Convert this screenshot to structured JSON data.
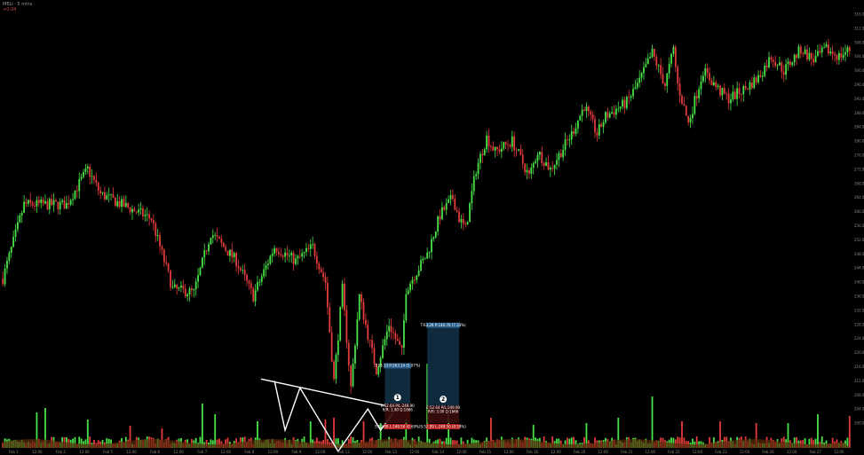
{
  "header": {
    "symbol": "MELI",
    "timeframe": "5 mins",
    "sub": "+0.04"
  },
  "colors": {
    "up": "#49e349",
    "down": "#e23b3b",
    "pattern": "#ffffff",
    "target_box": "#123048",
    "target_label": "#2a5f8c",
    "stop_box": "#3a0b0b",
    "stop_label": "#b21e1e",
    "volume_ma": "#5a2a0a"
  },
  "chart_data": {
    "type": "candlestick",
    "title": "",
    "price_anchors": [
      [
        0,
        241
      ],
      [
        10,
        262
      ],
      [
        30,
        262
      ],
      [
        40,
        272
      ],
      [
        46,
        265
      ],
      [
        56,
        262
      ],
      [
        70,
        258
      ],
      [
        80,
        238
      ],
      [
        90,
        237
      ],
      [
        98,
        254
      ],
      [
        110,
        246
      ],
      [
        118,
        236
      ],
      [
        128,
        250
      ],
      [
        138,
        246
      ],
      [
        146,
        250
      ],
      [
        152,
        240
      ],
      [
        156,
        212
      ],
      [
        160,
        238
      ],
      [
        164,
        210
      ],
      [
        168,
        236
      ],
      [
        172,
        225
      ],
      [
        176,
        215
      ],
      [
        182,
        228
      ],
      [
        188,
        220
      ],
      [
        190,
        238
      ],
      [
        200,
        248
      ],
      [
        206,
        259
      ],
      [
        212,
        264
      ],
      [
        215,
        258
      ],
      [
        218,
        255
      ],
      [
        223,
        272
      ],
      [
        228,
        281
      ],
      [
        232,
        277
      ],
      [
        240,
        280
      ],
      [
        248,
        270
      ],
      [
        252,
        277
      ],
      [
        258,
        272
      ],
      [
        262,
        276
      ],
      [
        268,
        282
      ],
      [
        274,
        290
      ],
      [
        280,
        282
      ],
      [
        284,
        287
      ],
      [
        294,
        291
      ],
      [
        300,
        297
      ],
      [
        306,
        305
      ],
      [
        312,
        296
      ],
      [
        316,
        306
      ],
      [
        318,
        296
      ],
      [
        323,
        285
      ],
      [
        330,
        300
      ],
      [
        338,
        294
      ],
      [
        342,
        292
      ],
      [
        350,
        295
      ],
      [
        356,
        298
      ],
      [
        362,
        304
      ],
      [
        368,
        300
      ],
      [
        372,
        303
      ],
      [
        376,
        306
      ],
      [
        382,
        303
      ],
      [
        388,
        306
      ],
      [
        394,
        304
      ],
      [
        399,
        306
      ]
    ],
    "volume_spikes": [
      [
        16,
        40
      ],
      [
        20,
        45
      ],
      [
        40,
        32
      ],
      [
        60,
        25
      ],
      [
        75,
        22
      ],
      [
        94,
        50
      ],
      [
        100,
        38
      ],
      [
        120,
        30
      ],
      [
        145,
        30
      ],
      [
        152,
        32
      ],
      [
        156,
        34
      ],
      [
        170,
        30
      ],
      [
        178,
        28
      ],
      [
        190,
        32
      ],
      [
        200,
        95
      ],
      [
        210,
        38
      ],
      [
        230,
        34
      ],
      [
        250,
        26
      ],
      [
        275,
        28
      ],
      [
        290,
        34
      ],
      [
        306,
        58
      ],
      [
        320,
        30
      ],
      [
        338,
        30
      ],
      [
        355,
        28
      ],
      [
        370,
        28
      ],
      [
        384,
        38
      ],
      [
        399,
        36
      ]
    ],
    "ylim": [
      198,
      318
    ],
    "y_ticks": [
      "316.00",
      "312.00",
      "308.00",
      "304.00",
      "300.00",
      "296.00",
      "292.00",
      "288.00",
      "284.00",
      "280.00",
      "276.00",
      "272.00",
      "268.00",
      "264.00",
      "260.00",
      "256.00",
      "252.00",
      "248.00",
      "244.00",
      "240.00",
      "236.00",
      "232.00",
      "228.00",
      "224.00",
      "220.00",
      "216.00",
      "212.00",
      "208.00",
      "204.00",
      "200.00"
    ],
    "x_ticks": [
      "Feb 1",
      "12:00",
      "Feb 2",
      "12:00",
      "Feb 5",
      "12:00",
      "Feb 6",
      "12:00",
      "Feb 7",
      "12:00",
      "Feb 8",
      "12:00",
      "Feb 9",
      "12:00",
      "Feb 12",
      "12:00",
      "Feb 13",
      "12:00",
      "Feb 14",
      "12:00",
      "Feb 15",
      "12:00",
      "Feb 16",
      "12:00",
      "Feb 20",
      "12:00",
      "Feb 21",
      "12:00",
      "Feb 22",
      "12:00",
      "Feb 23",
      "12:00",
      "Feb 26",
      "12:00",
      "Feb 27",
      "12:00"
    ],
    "trend_line": {
      "from": [
        125,
        212.5
      ],
      "to": [
        180,
        205
      ]
    },
    "pattern": [
      [
        128,
        212
      ],
      [
        133,
        198
      ],
      [
        140,
        210
      ],
      [
        158,
        192
      ],
      [
        172,
        204
      ],
      [
        178,
        198
      ],
      [
        184,
        203
      ]
    ],
    "trades": [
      {
        "number": "1",
        "x0": 180,
        "x1": 192,
        "entry": 205.5,
        "target": 215.5,
        "stop": 200,
        "target_label": "T:53.13 P:263.14 (5.07%)",
        "mid_label_1": "E:52.64 P/L:249.90",
        "mid_label_2": "R/R: 1.90 Q:1666",
        "stop_label": "S:52.09 L:249.50 (0.69%)"
      },
      {
        "number": "2",
        "x0": 200,
        "x1": 215,
        "entry": 205,
        "target": 227,
        "stop": 200,
        "target_label": "T:63.29 P:140.76 (7.33%)",
        "mid_label_1": "E:52.64 P/L:249.90",
        "mid_label_2": "R/R: 3.90 Q:1666",
        "stop_label": "S:52.09 L:249.50 (0.59%)"
      }
    ]
  }
}
